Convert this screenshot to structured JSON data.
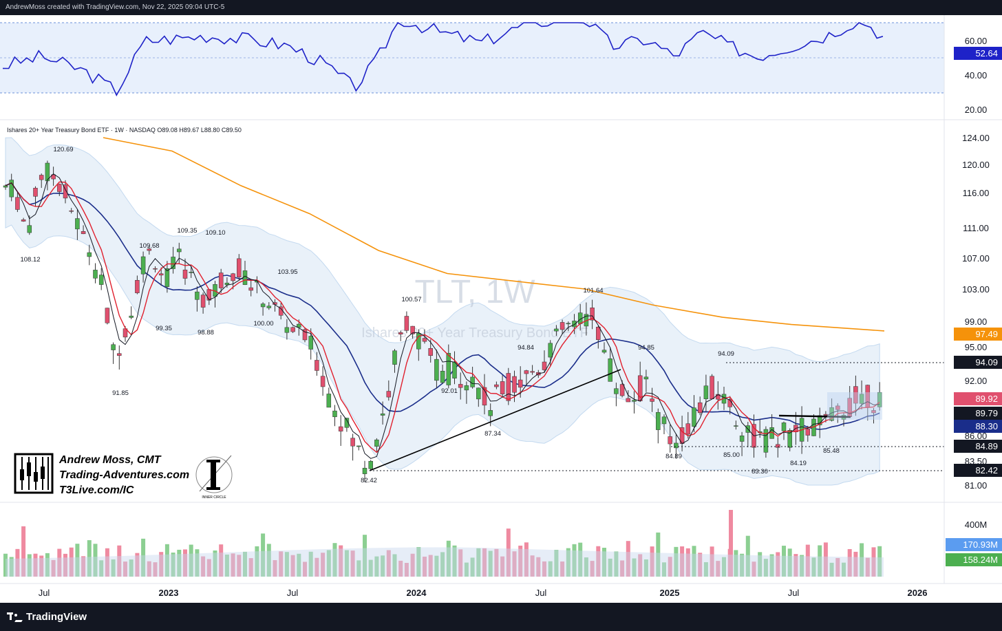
{
  "header": {
    "attribution": "AndrewMoss created with TradingView.com, Nov 22, 2025 09:04 UTC-5"
  },
  "footer": {
    "brand": "TradingView"
  },
  "watermark": {
    "symbol": "TLT, 1W",
    "name": "Ishares 20+ Year Treasury Bond ETF"
  },
  "legend": {
    "text": "Ishares 20+ Year Treasury Bond ETF · 1W · NASDAQ  O89.08  H89.67  L88.80  C89.50"
  },
  "branding": {
    "name": "Andrew Moss, CMT",
    "site": "Trading-Adventures.com",
    "site2": "T3Live.com/IC",
    "circle_caption": "INNER CIRCLE"
  },
  "colors": {
    "rsi": "#1e22c8",
    "ma_fast": "#e0202e",
    "ma_mid": "#1a2d8a",
    "ma_slow": "#f5920a",
    "bb": "#6fa0d8",
    "up": "#4caf50",
    "down": "#e0506e",
    "price": "#131722"
  },
  "rsi_panel": {
    "value_badge": "52.64",
    "ticks": [
      "60.00",
      "40.00",
      "20.00"
    ]
  },
  "price_panel": {
    "ticks": [
      "124.00",
      "120.00",
      "116.00",
      "111.00",
      "107.00",
      "103.00",
      "99.00",
      "95.00",
      "92.00",
      "86.00",
      "83.50",
      "81.00"
    ],
    "badges": [
      {
        "label": "97.49",
        "color": "#f5920a"
      },
      {
        "label": "94.09",
        "color": "#131722"
      },
      {
        "label": "89.92",
        "color": "#e0506e"
      },
      {
        "label": "89.79",
        "color": "#131722"
      },
      {
        "label": "88.30",
        "color": "#1a2d8a"
      },
      {
        "label": "84.89",
        "color": "#131722"
      },
      {
        "label": "82.42",
        "color": "#131722"
      }
    ],
    "annotations": [
      "120.69",
      "108.12",
      "109.68",
      "109.35",
      "109.10",
      "99.35",
      "98.88",
      "91.85",
      "103.95",
      "100.00",
      "100.57",
      "92.01",
      "87.34",
      "94.84",
      "101.64",
      "94.85",
      "82.42",
      "84.89",
      "85.00",
      "94.09",
      "83.30",
      "84.19",
      "85.48"
    ]
  },
  "volume_panel": {
    "ticks": [
      "400M"
    ],
    "badges": [
      {
        "label": "170.93M",
        "color": "#5b9cf0"
      },
      {
        "label": "158.24M",
        "color": "#4caf50"
      }
    ]
  },
  "time_axis": {
    "labels": [
      "Jul",
      "2023",
      "Jul",
      "2024",
      "Jul",
      "2025",
      "Jul",
      "2026"
    ]
  }
}
